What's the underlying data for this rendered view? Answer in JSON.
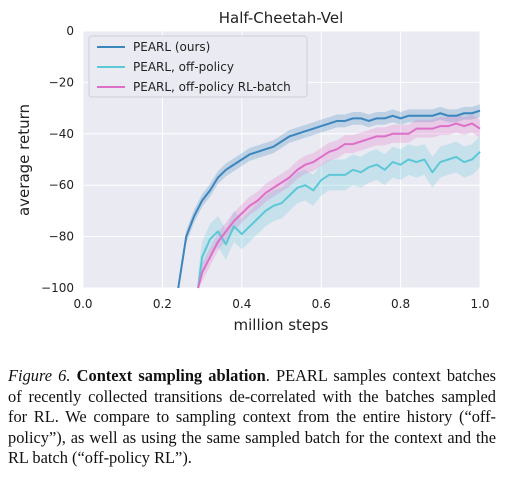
{
  "chart_data": {
    "type": "line",
    "title": "Half-Cheetah-Vel",
    "xlabel": "million steps",
    "ylabel": "average return",
    "xlim": [
      0.0,
      1.0
    ],
    "ylim": [
      -100,
      0
    ],
    "xticks": [
      "0.0",
      "0.2",
      "0.4",
      "0.6",
      "0.8",
      "1.0"
    ],
    "yticks": [
      "0",
      "−20",
      "−40",
      "−60",
      "−80",
      "−100"
    ],
    "xtick_values": [
      0.0,
      0.2,
      0.4,
      0.6,
      0.8,
      1.0
    ],
    "ytick_values": [
      0,
      -20,
      -40,
      -60,
      -80,
      -100
    ],
    "grid": true,
    "legend_position": "top-left",
    "series": [
      {
        "name": "PEARL (ours)",
        "color": "#3b86bd",
        "x": [
          0.24,
          0.26,
          0.28,
          0.3,
          0.32,
          0.34,
          0.36,
          0.38,
          0.4,
          0.42,
          0.44,
          0.46,
          0.48,
          0.5,
          0.52,
          0.54,
          0.56,
          0.58,
          0.6,
          0.62,
          0.64,
          0.66,
          0.68,
          0.7,
          0.72,
          0.74,
          0.76,
          0.78,
          0.8,
          0.82,
          0.84,
          0.86,
          0.88,
          0.9,
          0.92,
          0.94,
          0.96,
          0.98,
          1.0
        ],
        "y": [
          -100,
          -80,
          -72,
          -66,
          -62,
          -57,
          -54,
          -52,
          -50,
          -48,
          -47,
          -46,
          -45,
          -43,
          -41,
          -40,
          -39,
          -38,
          -37,
          -36,
          -35,
          -35,
          -34,
          -34,
          -35,
          -34,
          -34,
          -33,
          -34,
          -33,
          -33,
          -33,
          -33,
          -32,
          -33,
          -33,
          -32,
          -32,
          -31
        ]
      },
      {
        "name": "PEARL, off-policy",
        "color": "#5cc8d6",
        "x": [
          0.29,
          0.3,
          0.32,
          0.34,
          0.36,
          0.38,
          0.4,
          0.42,
          0.44,
          0.46,
          0.48,
          0.5,
          0.52,
          0.54,
          0.56,
          0.58,
          0.6,
          0.62,
          0.64,
          0.66,
          0.68,
          0.7,
          0.72,
          0.74,
          0.76,
          0.78,
          0.8,
          0.82,
          0.84,
          0.86,
          0.88,
          0.9,
          0.92,
          0.94,
          0.96,
          0.98,
          1.0
        ],
        "y": [
          -100,
          -88,
          -81,
          -78,
          -83,
          -76,
          -79,
          -76,
          -73,
          -70,
          -68,
          -67,
          -64,
          -61,
          -60,
          -62,
          -58,
          -56,
          -56,
          -56,
          -54,
          -55,
          -53,
          -52,
          -54,
          -51,
          -52,
          -50,
          -51,
          -50,
          -55,
          -51,
          -50,
          -49,
          -51,
          -50,
          -47
        ]
      },
      {
        "name": "PEARL, off-policy RL-batch",
        "color": "#de6fc9",
        "x": [
          0.29,
          0.3,
          0.32,
          0.34,
          0.36,
          0.38,
          0.4,
          0.42,
          0.44,
          0.46,
          0.48,
          0.5,
          0.52,
          0.54,
          0.56,
          0.58,
          0.6,
          0.62,
          0.64,
          0.66,
          0.68,
          0.7,
          0.72,
          0.74,
          0.76,
          0.78,
          0.8,
          0.82,
          0.84,
          0.86,
          0.88,
          0.9,
          0.92,
          0.94,
          0.96,
          0.98,
          1.0
        ],
        "y": [
          -100,
          -94,
          -88,
          -82,
          -78,
          -74,
          -71,
          -68,
          -66,
          -63,
          -61,
          -59,
          -57,
          -54,
          -52,
          -51,
          -49,
          -47,
          -46,
          -44,
          -44,
          -43,
          -42,
          -41,
          -41,
          -40,
          -40,
          -40,
          -38,
          -38,
          -38,
          -37,
          -37,
          -36,
          -37,
          -36,
          -38
        ]
      }
    ]
  },
  "caption": {
    "figure_number": "Figure 6.",
    "title": "Context sampling ablation",
    "text": ". PEARL samples context batches of recently collected transitions de-correlated with the batches sampled for RL. We compare to sampling context from the entire history (“off-policy”), as well as using the same sampled batch for the context and the RL batch (“off-policy RL”)."
  }
}
